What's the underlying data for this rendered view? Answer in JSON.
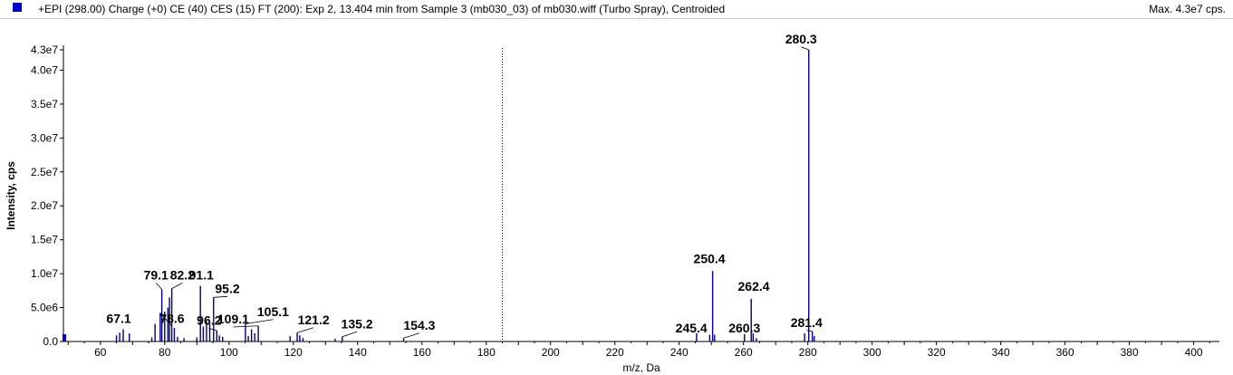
{
  "header": {
    "title": "+EPI (298.00) Charge (+0) CE (40) CES (15) FT (200): Exp 2, 13.404 min from Sample 3 (mb030_03) of mb030.wiff (Turbo Spray), Centroided",
    "max": "Max. 4.3e7 cps."
  },
  "colors": {
    "peak": "#000080",
    "accent": "#0000cc"
  },
  "chart_data": {
    "type": "bar",
    "xlabel": "m/z, Da",
    "ylabel": "Intensity, cps",
    "xlim": [
      48.5,
      408
    ],
    "ylim": [
      0,
      43000000.0
    ],
    "x_ticks": [
      60,
      80,
      100,
      120,
      140,
      160,
      180,
      200,
      220,
      240,
      260,
      280,
      300,
      320,
      340,
      360,
      380,
      400
    ],
    "y_ticks": [
      {
        "v": 0,
        "label": "0.0"
      },
      {
        "v": 5000000,
        "label": "5.0e6"
      },
      {
        "v": 10000000,
        "label": "1.0e7"
      },
      {
        "v": 15000000,
        "label": "1.5e7"
      },
      {
        "v": 20000000,
        "label": "2.0e7"
      },
      {
        "v": 25000000,
        "label": "2.5e7"
      },
      {
        "v": 30000000,
        "label": "3.0e7"
      },
      {
        "v": 35000000,
        "label": "3.5e7"
      },
      {
        "v": 40000000,
        "label": "4.0e7"
      },
      {
        "v": 43000000,
        "label": "4.3e7"
      }
    ],
    "marker_x": 185,
    "peaks": [
      {
        "mz": 49,
        "i": 800000
      },
      {
        "mz": 65,
        "i": 900000
      },
      {
        "mz": 66,
        "i": 1300000
      },
      {
        "mz": 67.1,
        "i": 1800000
      },
      {
        "mz": 69,
        "i": 1200000
      },
      {
        "mz": 76,
        "i": 600000
      },
      {
        "mz": 77,
        "i": 2600000
      },
      {
        "mz": 78.6,
        "i": 4200000
      },
      {
        "mz": 79.1,
        "i": 7700000
      },
      {
        "mz": 80,
        "i": 4400000
      },
      {
        "mz": 81,
        "i": 5000000
      },
      {
        "mz": 81.5,
        "i": 6500000
      },
      {
        "mz": 82.2,
        "i": 7800000
      },
      {
        "mz": 83,
        "i": 2000000
      },
      {
        "mz": 84,
        "i": 700000
      },
      {
        "mz": 86,
        "i": 500000
      },
      {
        "mz": 90,
        "i": 600000
      },
      {
        "mz": 91.1,
        "i": 8200000
      },
      {
        "mz": 92,
        "i": 2200000
      },
      {
        "mz": 93,
        "i": 3000000
      },
      {
        "mz": 94,
        "i": 2600000
      },
      {
        "mz": 95.2,
        "i": 6500000
      },
      {
        "mz": 96.2,
        "i": 1600000
      },
      {
        "mz": 97,
        "i": 900000
      },
      {
        "mz": 98,
        "i": 700000
      },
      {
        "mz": 105.1,
        "i": 2600000
      },
      {
        "mz": 106,
        "i": 800000
      },
      {
        "mz": 107,
        "i": 1800000
      },
      {
        "mz": 108,
        "i": 1200000
      },
      {
        "mz": 109.1,
        "i": 2300000
      },
      {
        "mz": 119,
        "i": 800000
      },
      {
        "mz": 121.2,
        "i": 1300000
      },
      {
        "mz": 122,
        "i": 900000
      },
      {
        "mz": 123,
        "i": 500000
      },
      {
        "mz": 133,
        "i": 400000
      },
      {
        "mz": 135.2,
        "i": 700000
      },
      {
        "mz": 154.3,
        "i": 500000
      },
      {
        "mz": 245.4,
        "i": 1200000
      },
      {
        "mz": 249.5,
        "i": 1000000
      },
      {
        "mz": 250.4,
        "i": 10400000
      },
      {
        "mz": 251,
        "i": 1000000
      },
      {
        "mz": 260.3,
        "i": 1100000
      },
      {
        "mz": 262.4,
        "i": 6300000
      },
      {
        "mz": 263,
        "i": 1200000
      },
      {
        "mz": 264,
        "i": 500000
      },
      {
        "mz": 279,
        "i": 1200000
      },
      {
        "mz": 280.3,
        "i": 43000000
      },
      {
        "mz": 281.4,
        "i": 1500000
      },
      {
        "mz": 282,
        "i": 800000
      }
    ],
    "labels": [
      {
        "text": "67.1",
        "mz": 67.1,
        "ix": 65.7,
        "iy": 2500000
      },
      {
        "text": "79.1",
        "mz": 79.1,
        "ix": 77.3,
        "iy": 8900000
      },
      {
        "text": "78.6",
        "mz": 78.6,
        "ix": 82.3,
        "iy": 2500000
      },
      {
        "text": "82.2",
        "mz": 82.2,
        "ix": 85.5,
        "iy": 8900000
      },
      {
        "text": "91.1",
        "mz": 91.1,
        "ix": 91.4,
        "iy": 8900000
      },
      {
        "text": "95.2",
        "mz": 95.2,
        "ix": 99.5,
        "iy": 6900000
      },
      {
        "text": "96.2",
        "mz": 96.2,
        "ix": 93.8,
        "iy": 2200000
      },
      {
        "text": "109.1",
        "mz": 109.1,
        "ix": 101.3,
        "iy": 2400000
      },
      {
        "text": "105.1",
        "mz": 105.1,
        "ix": 113.7,
        "iy": 3500000
      },
      {
        "text": "121.2",
        "mz": 121.2,
        "ix": 126.3,
        "iy": 2300000
      },
      {
        "text": "135.2",
        "mz": 135.2,
        "ix": 139.8,
        "iy": 1700000
      },
      {
        "text": "154.3",
        "mz": 154.3,
        "ix": 159.2,
        "iy": 1500000
      },
      {
        "text": "245.4",
        "mz": 245.4,
        "ix": 243.8,
        "iy": 1100000
      },
      {
        "text": "250.4",
        "mz": 250.4,
        "ix": 249.4,
        "iy": 11300000
      },
      {
        "text": "260.3",
        "mz": 260.3,
        "ix": 260.3,
        "iy": 1100000
      },
      {
        "text": "262.4",
        "mz": 262.4,
        "ix": 263.2,
        "iy": 7200000
      },
      {
        "text": "281.4",
        "mz": 281.4,
        "ix": 279.6,
        "iy": 1900000
      },
      {
        "text": "280.3",
        "mz": 280.3,
        "ix": 277.9,
        "iy": 43700000
      }
    ]
  }
}
